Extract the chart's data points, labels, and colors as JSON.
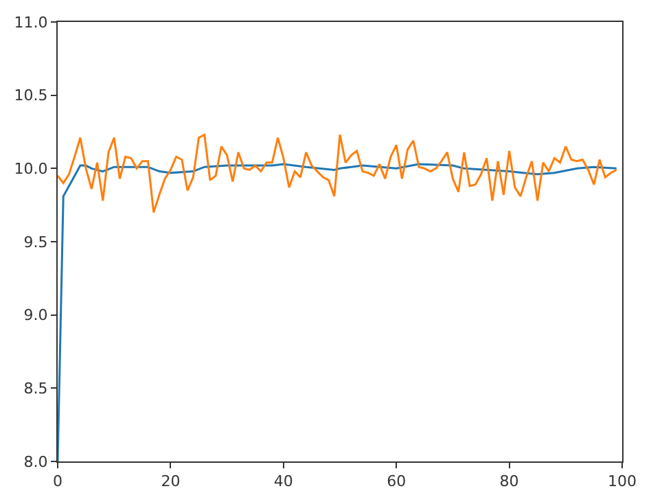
{
  "chart_data": {
    "type": "line",
    "xlim": [
      0,
      100
    ],
    "xticks": [
      0,
      20,
      40,
      60,
      80,
      100
    ],
    "ylim": [
      8.0,
      11.0
    ],
    "yticks": [
      {
        "value": 8.0,
        "label": "8.0"
      },
      {
        "value": 8.5,
        "label": "8.5"
      },
      {
        "value": 9.0,
        "label": "9.0"
      },
      {
        "value": 9.5,
        "label": "9.5"
      },
      {
        "value": 10.0,
        "label": "10.0"
      },
      {
        "value": 10.5,
        "label": "10.5"
      },
      {
        "value": 11.0,
        "label": "11.0"
      }
    ],
    "marker": "none",
    "line_style": "solid",
    "series": [
      {
        "color": "#1f77b4",
        "x": [
          0,
          1,
          2,
          3,
          4,
          5,
          6,
          8,
          10,
          16,
          18,
          20,
          24,
          26,
          30,
          38,
          40,
          44,
          49,
          50,
          54,
          60,
          64,
          70,
          72,
          80,
          85,
          88,
          92,
          95,
          99
        ],
        "values": [
          8.0,
          9.81,
          9.88,
          9.95,
          10.02,
          10.02,
          10.0,
          9.98,
          10.01,
          10.01,
          9.98,
          9.97,
          9.98,
          10.01,
          10.02,
          10.02,
          10.03,
          10.01,
          9.99,
          10.0,
          10.02,
          10.0,
          10.03,
          10.02,
          10.0,
          9.98,
          9.96,
          9.97,
          10.0,
          10.01,
          10.0
        ]
      },
      {
        "color": "#ff7f0e",
        "x": [
          0,
          1,
          2,
          3,
          4,
          5,
          6,
          7,
          8,
          9,
          10,
          11,
          12,
          13,
          14,
          15,
          16,
          17,
          18,
          19,
          20,
          21,
          22,
          23,
          24,
          25,
          26,
          27,
          28,
          29,
          30,
          31,
          32,
          33,
          34,
          35,
          36,
          37,
          38,
          39,
          40,
          41,
          42,
          43,
          44,
          45,
          46,
          47,
          48,
          49,
          50,
          51,
          52,
          53,
          54,
          55,
          56,
          57,
          58,
          59,
          60,
          61,
          62,
          63,
          64,
          65,
          66,
          67,
          68,
          69,
          70,
          71,
          72,
          73,
          74,
          75,
          76,
          77,
          78,
          79,
          80,
          81,
          82,
          83,
          84,
          85,
          86,
          87,
          88,
          89,
          90,
          91,
          92,
          93,
          94,
          95,
          96,
          97,
          98,
          99
        ],
        "values": [
          9.95,
          9.9,
          9.96,
          10.08,
          10.21,
          10.0,
          9.86,
          10.04,
          9.78,
          10.11,
          10.21,
          9.93,
          10.08,
          10.07,
          10.0,
          10.05,
          10.05,
          9.7,
          9.82,
          9.93,
          9.99,
          10.08,
          10.06,
          9.85,
          9.94,
          10.21,
          10.23,
          9.92,
          9.95,
          10.15,
          10.09,
          9.91,
          10.11,
          10.0,
          9.99,
          10.02,
          9.98,
          10.04,
          10.04,
          10.21,
          10.07,
          9.87,
          9.98,
          9.94,
          10.11,
          10.02,
          9.98,
          9.94,
          9.92,
          9.81,
          10.23,
          10.04,
          10.09,
          10.12,
          9.98,
          9.97,
          9.95,
          10.03,
          9.93,
          10.08,
          10.16,
          9.93,
          10.13,
          10.19,
          10.01,
          10.0,
          9.98,
          10.0,
          10.05,
          10.11,
          9.93,
          9.84,
          10.11,
          9.88,
          9.89,
          9.96,
          10.07,
          9.78,
          10.05,
          9.82,
          10.12,
          9.87,
          9.81,
          9.94,
          10.05,
          9.78,
          10.04,
          9.98,
          10.07,
          10.04,
          10.15,
          10.06,
          10.05,
          10.06,
          9.99,
          9.89,
          10.06,
          9.94,
          9.97,
          9.99
        ]
      }
    ]
  }
}
